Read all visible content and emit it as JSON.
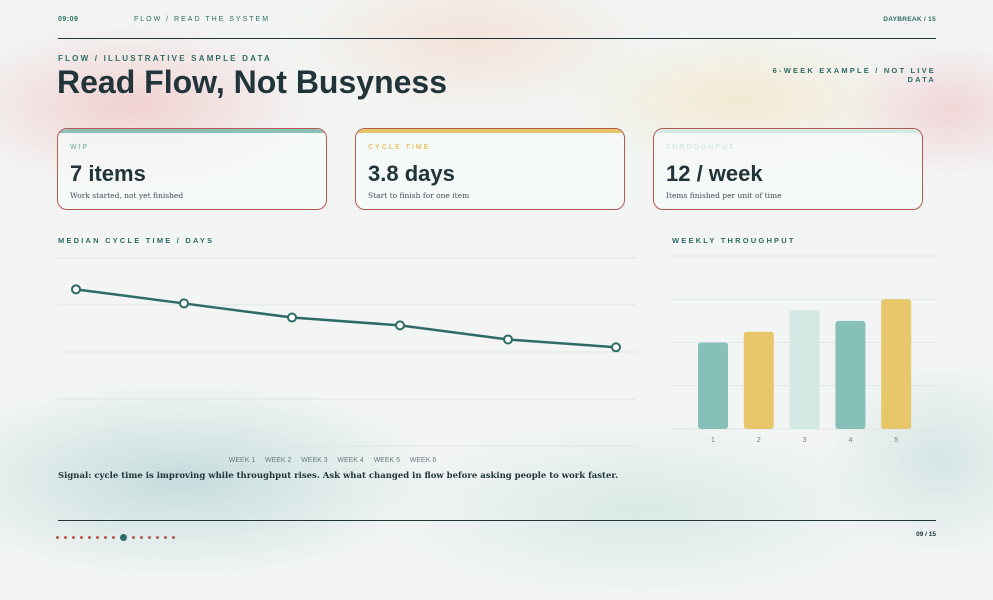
{
  "header": {
    "time": "09:09",
    "breadcrumb": "FLOW / READ THE SYSTEM",
    "deck": "DAYBREAK / 15"
  },
  "eyebrow": "FLOW / ILLUSTRATIVE SAMPLE DATA",
  "title": "Read Flow, Not Busyness",
  "note": "6-WEEK EXAMPLE / NOT LIVE DATA",
  "cards": [
    {
      "label": "WIP",
      "value": "7 items",
      "desc": "Work started, not yet finished",
      "accent": "#8bbfb7"
    },
    {
      "label": "CYCLE TIME",
      "value": "3.8 days",
      "desc": "Start to finish for one item",
      "accent": "#e6c46a"
    },
    {
      "label": "THROUGHPUT",
      "value": "12 / week",
      "desc": "Items finished per unit of time",
      "accent": "#d6e8e4"
    }
  ],
  "chart_data": [
    {
      "type": "line",
      "title": "MEDIAN CYCLE TIME / DAYS",
      "categories": [
        "WEEK 1",
        "WEEK 2",
        "WEEK 3",
        "WEEK 4",
        "WEEK 5",
        "WEEK 6"
      ],
      "values": [
        5.0,
        4.55,
        4.1,
        3.85,
        3.4,
        3.15
      ],
      "ylim": [
        0,
        6
      ],
      "grid": true,
      "color": "#2f6b65"
    },
    {
      "type": "bar",
      "title": "WEEKLY THROUGHPUT",
      "categories": [
        "1",
        "2",
        "3",
        "4",
        "5"
      ],
      "values": [
        8,
        9,
        11,
        10,
        12
      ],
      "ylim": [
        0,
        16
      ],
      "grid": true,
      "colors": [
        "#87c0b8",
        "#e8c76b",
        "#d5e9e4",
        "#87c0b8",
        "#e8c76b"
      ]
    }
  ],
  "signal": "Signal: cycle time is improving while throughput rises. Ask what changed in flow before asking people to work faster.",
  "footer": {
    "page": "09 / 15",
    "total_dots": 15,
    "active_dot": 9
  }
}
